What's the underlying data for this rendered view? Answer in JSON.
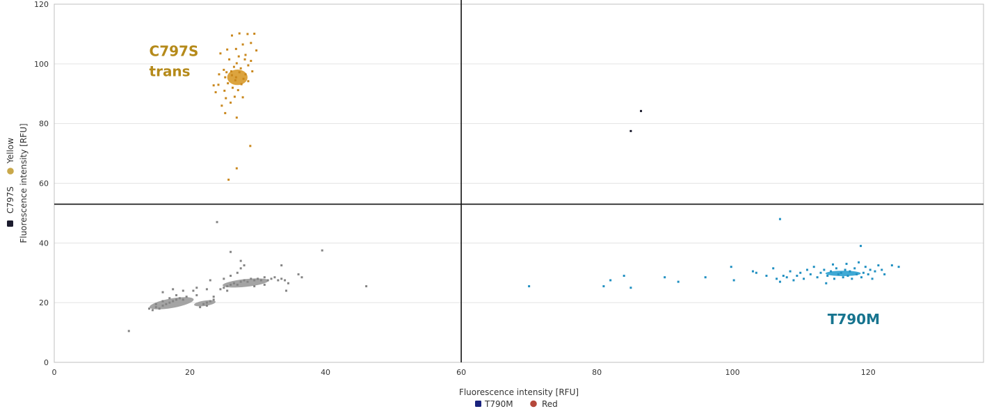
{
  "chart_data": {
    "type": "scatter",
    "title": "",
    "xlabel": "Fluorescence intensity [RFU]",
    "ylabel": "Fluorescence intensity [RFU]",
    "xlim": [
      0,
      137
    ],
    "ylim": [
      0,
      120
    ],
    "x_ticks": [
      0,
      20,
      40,
      60,
      80,
      100,
      120
    ],
    "y_ticks": [
      0,
      20,
      40,
      60,
      80,
      100,
      120
    ],
    "grid": "horizontal",
    "thresholds": {
      "x": 60,
      "y": 53
    },
    "legend_x": {
      "placement": "bottom-center",
      "entries": [
        {
          "label": "T790M",
          "color": "#1a237e",
          "shape": "square"
        },
        {
          "label": "Red",
          "color": "#b5473a",
          "shape": "circle"
        }
      ]
    },
    "legend_y": {
      "placement": "left-vertical",
      "entries": [
        {
          "label": "C797S",
          "color": "#1c1c2e",
          "shape": "square"
        },
        {
          "label": "Yellow",
          "color": "#c9a84a",
          "shape": "circle"
        }
      ]
    },
    "annotations": [
      {
        "lines": [
          "C797S",
          "trans"
        ],
        "x": 14,
        "y": 104,
        "color": "#b58a1a"
      },
      {
        "lines": [
          "T790M"
        ],
        "x": 114,
        "y": 14.5,
        "color": "#17748f"
      }
    ],
    "series": [
      {
        "name": "",
        "color": "#c9871c",
        "points": [
          [
            24.5,
            103.5
          ],
          [
            25.5,
            104.8
          ],
          [
            26.2,
            109.5
          ],
          [
            27.3,
            110.2
          ],
          [
            28.5,
            110
          ],
          [
            29.5,
            110.1
          ],
          [
            27.8,
            106.5
          ],
          [
            29,
            107
          ],
          [
            26.8,
            105
          ],
          [
            25.8,
            101.5
          ],
          [
            28.2,
            103
          ],
          [
            27.2,
            102.5
          ],
          [
            29.8,
            104.5
          ],
          [
            25,
            98
          ],
          [
            26.5,
            99
          ],
          [
            27.5,
            98.5
          ],
          [
            28.6,
            99.5
          ],
          [
            24.3,
            96.5
          ],
          [
            25.2,
            95.5
          ],
          [
            26.2,
            96.2
          ],
          [
            26.8,
            95.5
          ],
          [
            27.3,
            97.2
          ],
          [
            28.2,
            96.5
          ],
          [
            29.2,
            97.5
          ],
          [
            24.2,
            93
          ],
          [
            25.6,
            93.5
          ],
          [
            26.7,
            94.5
          ],
          [
            27.6,
            93.2
          ],
          [
            28.6,
            94.2
          ],
          [
            23.8,
            90.5
          ],
          [
            25.1,
            91
          ],
          [
            26.3,
            92
          ],
          [
            27.1,
            91.2
          ],
          [
            25.3,
            88.5
          ],
          [
            26.6,
            89
          ],
          [
            27.8,
            88.8
          ],
          [
            24.7,
            86
          ],
          [
            26,
            87
          ],
          [
            25.2,
            83.5
          ],
          [
            26.9,
            82
          ],
          [
            28.9,
            72.5
          ],
          [
            26.9,
            65
          ],
          [
            25.7,
            61.2
          ],
          [
            23.5,
            92.8
          ],
          [
            29,
            101
          ],
          [
            28.1,
            101.5
          ],
          [
            26.1,
            97.5
          ],
          [
            27.9,
            95
          ],
          [
            25.4,
            97.2
          ],
          [
            26.9,
            100.2
          ]
        ]
      },
      {
        "name": "",
        "color": "#848484",
        "points": [
          [
            11,
            10.5
          ],
          [
            14,
            18
          ],
          [
            14.5,
            17.5
          ],
          [
            15,
            18.5
          ],
          [
            15.5,
            18
          ],
          [
            16,
            19
          ],
          [
            16.5,
            19.5
          ],
          [
            17,
            20
          ],
          [
            17.5,
            20.5
          ],
          [
            18,
            21
          ],
          [
            18.5,
            21.5
          ],
          [
            19,
            21
          ],
          [
            19.5,
            22
          ],
          [
            15,
            19.5
          ],
          [
            16,
            20.5
          ],
          [
            17,
            21.5
          ],
          [
            18,
            22.5
          ],
          [
            16,
            23.5
          ],
          [
            17.5,
            24.5
          ],
          [
            19,
            24
          ],
          [
            20.5,
            24
          ],
          [
            21,
            25
          ],
          [
            21.5,
            18.5
          ],
          [
            22,
            19.5
          ],
          [
            22.5,
            20
          ],
          [
            23,
            20.5
          ],
          [
            23.5,
            21
          ],
          [
            22.5,
            19
          ],
          [
            21,
            22.5
          ],
          [
            22.5,
            24.5
          ],
          [
            23,
            27.5
          ],
          [
            23.5,
            22
          ],
          [
            24.5,
            24.5
          ],
          [
            25,
            25
          ],
          [
            25.5,
            25.5
          ],
          [
            26,
            26
          ],
          [
            26.5,
            26.5
          ],
          [
            27,
            26
          ],
          [
            27.5,
            27
          ],
          [
            28,
            27.5
          ],
          [
            28.5,
            27
          ],
          [
            29,
            28
          ],
          [
            29.5,
            27.5
          ],
          [
            30,
            28
          ],
          [
            30.5,
            27.5
          ],
          [
            31,
            28.5
          ],
          [
            31.5,
            27.5
          ],
          [
            32,
            28
          ],
          [
            32.5,
            28.5
          ],
          [
            33,
            27.5
          ],
          [
            33.5,
            28
          ],
          [
            34,
            27.5
          ],
          [
            34.5,
            26.5
          ],
          [
            25,
            28
          ],
          [
            26,
            29
          ],
          [
            27,
            30
          ],
          [
            27.5,
            31.5
          ],
          [
            28,
            32.5
          ],
          [
            27.5,
            34
          ],
          [
            26,
            37
          ],
          [
            24,
            47
          ],
          [
            33.5,
            32.5
          ],
          [
            34.2,
            24
          ],
          [
            36,
            29.5
          ],
          [
            36.5,
            28.5
          ],
          [
            39.5,
            37.5
          ],
          [
            46,
            25.5
          ],
          [
            25.5,
            24
          ],
          [
            29.5,
            25.5
          ],
          [
            31,
            26
          ]
        ]
      },
      {
        "name": "",
        "color": "#1c1c2e",
        "points": [
          [
            85,
            77.5
          ],
          [
            86.5,
            84.2
          ]
        ]
      },
      {
        "name": "",
        "color": "#1f8fc1",
        "points": [
          [
            70,
            25.5
          ],
          [
            81,
            25.5
          ],
          [
            82,
            27.5
          ],
          [
            84,
            29
          ],
          [
            85,
            25
          ],
          [
            90,
            28.5
          ],
          [
            92,
            27
          ],
          [
            96,
            28.5
          ],
          [
            99.8,
            32
          ],
          [
            100.2,
            27.5
          ],
          [
            103,
            30.5
          ],
          [
            103.5,
            30
          ],
          [
            105,
            29
          ],
          [
            106,
            31.5
          ],
          [
            106.5,
            28
          ],
          [
            107,
            48
          ],
          [
            107,
            27
          ],
          [
            107.5,
            29
          ],
          [
            108,
            28.5
          ],
          [
            108.5,
            30.5
          ],
          [
            109,
            27.5
          ],
          [
            109.5,
            29
          ],
          [
            110,
            30
          ],
          [
            110.5,
            28
          ],
          [
            111,
            31
          ],
          [
            111.5,
            29.5
          ],
          [
            112,
            32
          ],
          [
            112.5,
            28.5
          ],
          [
            113,
            30
          ],
          [
            113.5,
            31
          ],
          [
            113.8,
            26.5
          ],
          [
            114,
            29
          ],
          [
            114.5,
            30.5
          ],
          [
            115,
            28
          ],
          [
            115.3,
            31.5
          ],
          [
            115.6,
            29.5
          ],
          [
            116,
            30
          ],
          [
            116.3,
            28.5
          ],
          [
            116.6,
            31
          ],
          [
            117,
            29
          ],
          [
            117.3,
            30.5
          ],
          [
            117.6,
            28
          ],
          [
            118,
            31.5
          ],
          [
            118.3,
            29.5
          ],
          [
            118.6,
            33.5
          ],
          [
            118.9,
            39
          ],
          [
            119,
            28.5
          ],
          [
            119.3,
            30
          ],
          [
            119.6,
            32
          ],
          [
            120,
            29.5
          ],
          [
            120.3,
            31
          ],
          [
            120.6,
            28
          ],
          [
            121,
            30.5
          ],
          [
            121.5,
            32.5
          ],
          [
            122,
            31
          ],
          [
            122.4,
            29.5
          ],
          [
            123.5,
            32.5
          ],
          [
            124.5,
            32
          ],
          [
            116.8,
            33
          ],
          [
            114.8,
            32.8
          ]
        ]
      }
    ],
    "clusters": [
      {
        "color": "#9a9a9a",
        "cx": 17.3,
        "cy": 19.8,
        "rx": 3.3,
        "ry": 1.6,
        "angle_deg": -10
      },
      {
        "color": "#9a9a9a",
        "cx": 22.2,
        "cy": 19.8,
        "rx": 1.6,
        "ry": 0.9,
        "angle_deg": -8
      },
      {
        "color": "#9a9a9a",
        "cx": 28.2,
        "cy": 26.6,
        "rx": 3.4,
        "ry": 1.3,
        "angle_deg": -6
      },
      {
        "color": "#d89a2a",
        "cx": 27.0,
        "cy": 95.5,
        "rx": 1.5,
        "ry": 2.6,
        "angle_deg": 0
      },
      {
        "color": "#2aa0d0",
        "cx": 116.3,
        "cy": 29.8,
        "rx": 2.6,
        "ry": 0.9,
        "angle_deg": 0
      }
    ]
  }
}
